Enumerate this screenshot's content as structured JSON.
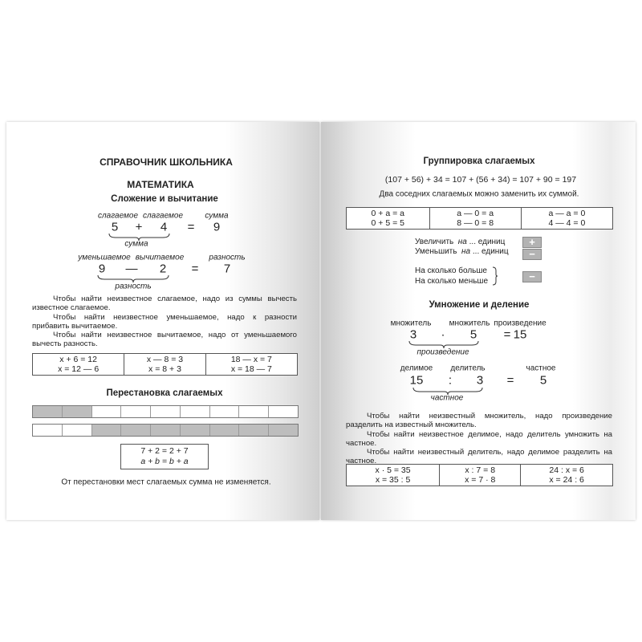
{
  "left_page": {
    "title": "СПРАВОЧНИК ШКОЛЬНИКА",
    "subject": "МАТЕМАТИКА",
    "section1": "Сложение и вычитание",
    "addition": {
      "label_a": "слагаемое",
      "label_b": "слагаемое",
      "label_result": "сумма",
      "a": "5",
      "op": "+",
      "b": "4",
      "eq": "=",
      "result": "9",
      "brace_label": "сумма"
    },
    "subtraction": {
      "label_a": "уменьшаемое",
      "label_b": "вычитаемое",
      "label_result": "разность",
      "a": "9",
      "op": "—",
      "b": "2",
      "eq": "=",
      "result": "7",
      "brace_label": "разность"
    },
    "rules": [
      "Чтобы найти неизвестное слагаемое, надо из суммы вычесть известное слагаемое.",
      "Чтобы найти неизвестное уменьшаемое, надо к разности прибавить вычитаемое.",
      "Чтобы найти неизвестное вычитаемое, надо от уменьшаемого вычесть разность."
    ],
    "table": [
      [
        "x + 6 = 12",
        "x = 12 — 6"
      ],
      [
        "x — 8 = 3",
        "x = 8 + 3"
      ],
      [
        "18 — x = 7",
        "x = 18 — 7"
      ]
    ],
    "section2": "Перестановка слагаемых",
    "box": [
      "7 + 2 = 2 + 7",
      "a + b = b + a"
    ],
    "conclusion": "От перестановки мест слагаемых сумма не изменяется."
  },
  "right_page": {
    "section1": "Группировка слагаемых",
    "equation": "(107 + 56) + 34 = 107 + (56 + 34) = 107 + 90 = 197",
    "note": "Два соседних слагаемых можно заменить их суммой.",
    "table": [
      [
        "0 + a = a",
        "0 + 5 = 5"
      ],
      [
        "a — 0 = a",
        "8 — 0 = 8"
      ],
      [
        "a — a = 0",
        "4 — 4 = 0"
      ]
    ],
    "increase": {
      "word": "Увеличить",
      "na": "на",
      "rest": "... единиц",
      "symbol": "+"
    },
    "decrease": {
      "word": "Уменьшить",
      "na": "на",
      "rest": "... единиц",
      "symbol": "−"
    },
    "compare": [
      "На сколько больше",
      "На сколько меньше"
    ],
    "compare_symbol": "−",
    "section2": "Умножение и деление",
    "multiplication": {
      "label_a": "множитель",
      "label_b": "множитель",
      "label_result": "произведение",
      "a": "3",
      "op": "·",
      "b": "5",
      "eq": "=",
      "result": "15",
      "brace_label": "произведение"
    },
    "division": {
      "label_a": "делимое",
      "label_b": "делитель",
      "label_result": "частное",
      "a": "15",
      "op": ":",
      "b": "3",
      "eq": "=",
      "result": "5",
      "brace_label": "частное"
    },
    "rules": [
      "Чтобы найти неизвестный множитель, надо произведение разделить на известный множитель.",
      "Чтобы найти неизвестное делимое, надо делитель умножить на частное.",
      "Чтобы найти неизвестный делитель, надо делимое разделить на частное."
    ],
    "table2": [
      [
        "x · 5 = 35",
        "x = 35 : 5"
      ],
      [
        "x : 7 = 8",
        "x = 7 · 8"
      ],
      [
        "24 : x = 6",
        "x = 24 : 6"
      ]
    ]
  }
}
